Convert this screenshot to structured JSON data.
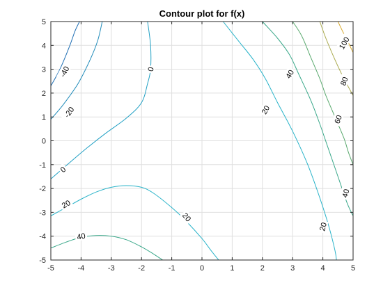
{
  "chart_data": {
    "type": "contour",
    "title": "Contour plot for f(x)",
    "xlabel": "",
    "ylabel": "",
    "xlim": [
      -5,
      5
    ],
    "ylim": [
      -5,
      5
    ],
    "xticks": [
      -5,
      -4,
      -3,
      -2,
      -1,
      0,
      1,
      2,
      3,
      4,
      5
    ],
    "yticks": [
      -5,
      -4,
      -3,
      -2,
      -1,
      0,
      1,
      2,
      3,
      4,
      5
    ],
    "grid": true,
    "levels": [
      {
        "level": -40,
        "color": "#1f6fb4",
        "lines": [
          [
            [
              -5,
              2.3
            ],
            [
              -4.7,
              3.0
            ],
            [
              -4.4,
              3.9
            ],
            [
              -4.2,
              4.6
            ],
            [
              -4.05,
              5
            ]
          ]
        ],
        "labels": [
          {
            "text": "-40",
            "x": -4.55,
            "y": 2.9,
            "angle": -62
          }
        ]
      },
      {
        "level": -20,
        "color": "#1e8ab9",
        "lines": [
          [
            [
              -5,
              0.9
            ],
            [
              -4.6,
              1.5
            ],
            [
              -4.1,
              2.4
            ],
            [
              -3.7,
              3.4
            ],
            [
              -3.45,
              4.2
            ],
            [
              -3.3,
              5
            ]
          ]
        ],
        "labels": [
          {
            "text": "-20",
            "x": -4.4,
            "y": 1.2,
            "angle": -55
          }
        ]
      },
      {
        "level": 0,
        "color": "#21a0c4",
        "lines": [
          [
            [
              -5,
              -1.6
            ],
            [
              -4.5,
              -1.05
            ],
            [
              -3.9,
              -0.4
            ],
            [
              -3.2,
              0.3
            ],
            [
              -2.5,
              0.95
            ],
            [
              -2.0,
              1.6
            ],
            [
              -1.8,
              2.4
            ],
            [
              -1.7,
              3.0
            ],
            [
              -1.7,
              4.0
            ],
            [
              -1.8,
              5
            ]
          ]
        ],
        "labels": [
          {
            "text": "0",
            "x": -4.6,
            "y": -1.2,
            "angle": -40
          },
          {
            "text": "0",
            "x": -1.7,
            "y": 3.0,
            "angle": -80
          }
        ]
      },
      {
        "level": 20,
        "color": "#29b3c9",
        "lines": [
          [
            [
              0.7,
              5
            ],
            [
              1.2,
              4.2
            ],
            [
              1.7,
              3.4
            ],
            [
              2.1,
              2.6
            ],
            [
              2.5,
              1.6
            ],
            [
              3.0,
              0.4
            ],
            [
              3.5,
              -1.0
            ],
            [
              3.9,
              -2.4
            ],
            [
              4.2,
              -3.6
            ],
            [
              4.4,
              -4.6
            ],
            [
              4.45,
              -5
            ]
          ],
          [
            [
              -5,
              -3.15
            ],
            [
              -4.5,
              -2.8
            ],
            [
              -4.0,
              -2.45
            ],
            [
              -3.5,
              -2.15
            ],
            [
              -3.0,
              -1.95
            ],
            [
              -2.5,
              -1.88
            ],
            [
              -2.0,
              -1.95
            ],
            [
              -1.6,
              -2.2
            ],
            [
              -1.0,
              -2.8
            ],
            [
              -0.5,
              -3.4
            ],
            [
              0.0,
              -4.1
            ],
            [
              0.3,
              -4.6
            ],
            [
              0.55,
              -5
            ]
          ]
        ],
        "labels": [
          {
            "text": "20",
            "x": 2.1,
            "y": 1.3,
            "angle": -60
          },
          {
            "text": "20",
            "x": -4.5,
            "y": -2.65,
            "angle": -30
          },
          {
            "text": "20",
            "x": -0.5,
            "y": -3.2,
            "angle": 50
          },
          {
            "text": "20",
            "x": 4.0,
            "y": -3.6,
            "angle": -75
          }
        ]
      },
      {
        "level": 40,
        "color": "#3aa88a",
        "lines": [
          [
            [
              2.0,
              5
            ],
            [
              2.5,
              4.3
            ],
            [
              2.9,
              3.6
            ],
            [
              3.2,
              2.8
            ],
            [
              3.6,
              1.7
            ],
            [
              3.9,
              0.7
            ],
            [
              4.2,
              -0.4
            ],
            [
              4.5,
              -1.5
            ],
            [
              4.8,
              -2.6
            ],
            [
              5,
              -3.15
            ]
          ],
          [
            [
              -5,
              -4.5
            ],
            [
              -4.5,
              -4.25
            ],
            [
              -4.0,
              -4.05
            ],
            [
              -3.5,
              -3.97
            ],
            [
              -3.0,
              -4.0
            ],
            [
              -2.5,
              -4.15
            ],
            [
              -2.0,
              -4.45
            ],
            [
              -1.6,
              -4.75
            ],
            [
              -1.3,
              -5
            ]
          ]
        ],
        "labels": [
          {
            "text": "40",
            "x": 2.9,
            "y": 2.8,
            "angle": -60
          },
          {
            "text": "40",
            "x": 4.75,
            "y": -2.2,
            "angle": -75
          },
          {
            "text": "40",
            "x": -4.0,
            "y": -4.0,
            "angle": -10
          }
        ]
      },
      {
        "level": 60,
        "color": "#5aa96e",
        "lines": [
          [
            [
              3.0,
              5
            ],
            [
              3.3,
              4.4
            ],
            [
              3.6,
              3.5
            ],
            [
              3.9,
              2.6
            ],
            [
              4.1,
              1.9
            ],
            [
              4.4,
              1.0
            ],
            [
              4.7,
              0.1
            ],
            [
              4.85,
              -0.5
            ],
            [
              5,
              -1.0
            ]
          ]
        ],
        "labels": [
          {
            "text": "60",
            "x": 4.5,
            "y": 0.9,
            "angle": -70
          }
        ]
      },
      {
        "level": 80,
        "color": "#a8a84a",
        "lines": [
          [
            [
              3.9,
              5
            ],
            [
              4.1,
              4.3
            ],
            [
              4.4,
              3.4
            ],
            [
              4.7,
              2.6
            ],
            [
              5,
              1.9
            ]
          ]
        ],
        "labels": [
          {
            "text": "80",
            "x": 4.7,
            "y": 2.5,
            "angle": -70
          }
        ]
      },
      {
        "level": 100,
        "color": "#d9a92a",
        "lines": [
          [
            [
              4.5,
              5
            ],
            [
              4.65,
              4.6
            ],
            [
              4.85,
              4.1
            ],
            [
              5,
              3.7
            ]
          ]
        ],
        "labels": [
          {
            "text": "100",
            "x": 4.7,
            "y": 4.1,
            "angle": -60
          }
        ]
      }
    ]
  }
}
